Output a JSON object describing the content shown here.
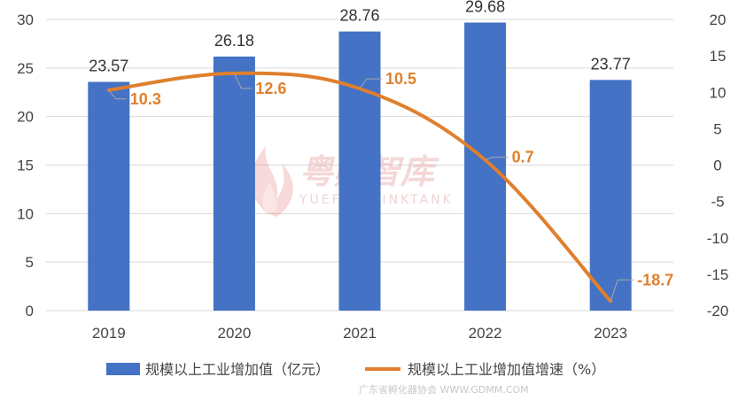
{
  "chart_data": {
    "type": "bar+line",
    "categories": [
      "2019",
      "2020",
      "2021",
      "2022",
      "2023"
    ],
    "series": [
      {
        "name": "规模以上工业增加值（亿元）",
        "type": "bar",
        "axis": "left",
        "values": [
          23.57,
          26.18,
          28.76,
          29.68,
          23.77
        ],
        "labels": [
          "23.57",
          "26.18",
          "28.76",
          "29.68",
          "23.77"
        ]
      },
      {
        "name": "规模以上工业增加值增速（%）",
        "type": "line",
        "axis": "right",
        "values": [
          10.3,
          12.6,
          10.5,
          0.7,
          -18.7
        ],
        "labels": [
          "10.3",
          "12.6",
          "10.5",
          "0.7",
          "-18.7"
        ]
      }
    ],
    "y_left": {
      "min": 0,
      "max": 30,
      "ticks": [
        "0",
        "5",
        "10",
        "15",
        "20",
        "25",
        "30"
      ]
    },
    "y_right": {
      "min": -20,
      "max": 20,
      "ticks": [
        "-20",
        "-15",
        "-10",
        "-5",
        "0",
        "5",
        "10",
        "15",
        "20"
      ]
    },
    "grid": true,
    "legend_position": "bottom",
    "colors": {
      "bar": "#4472c4",
      "line": "#e07f2d",
      "grid": "#d9d9d9",
      "leader": "#a6a6a6"
    }
  },
  "watermark": {
    "title": "粤孵智库",
    "subtitle": "YUEFU THINKTANK",
    "footer": "广东省孵化器协会 WWW.GDMM.COM"
  }
}
